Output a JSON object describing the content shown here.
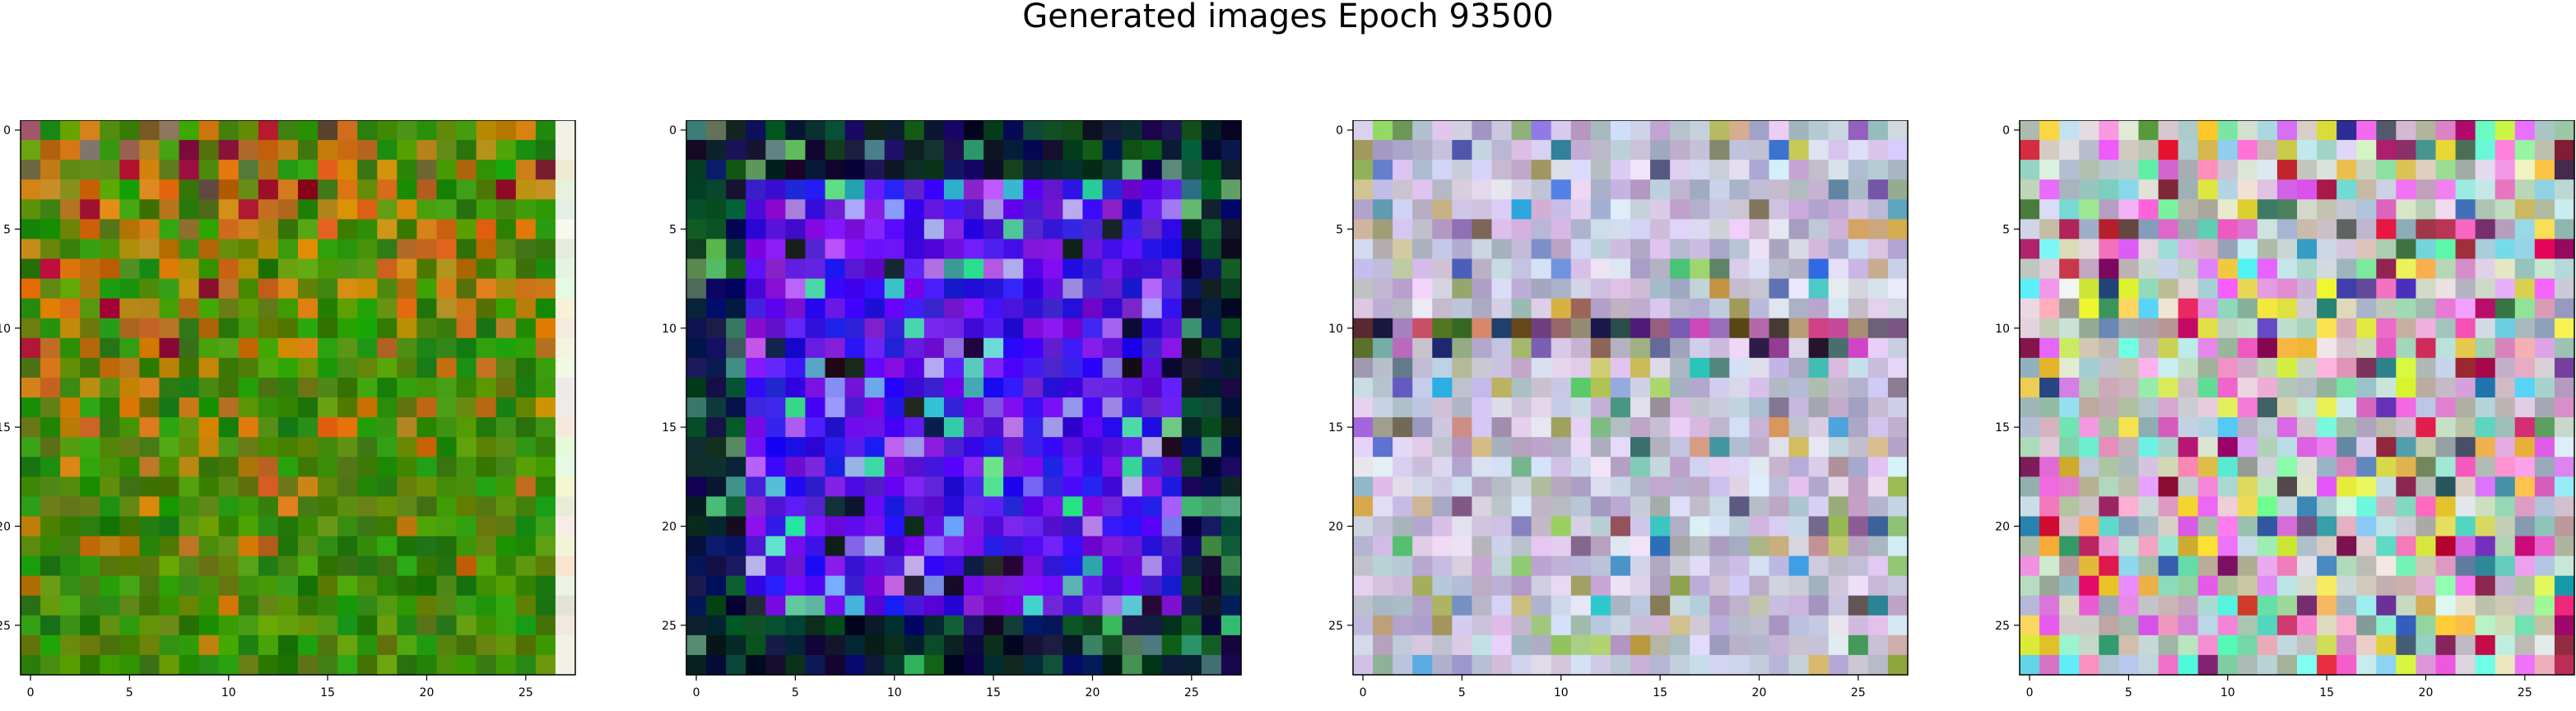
{
  "figure": {
    "title": "Generated images Epoch 93500"
  },
  "chart_data": [
    {
      "type": "heatmap",
      "description_kind": "rgb-image",
      "grid_size": [
        28,
        28
      ],
      "palette": "warm-green",
      "x_ticks": [
        "0",
        "5",
        "10",
        "15",
        "20",
        "25"
      ],
      "y_ticks": [
        "0",
        "5",
        "10",
        "15",
        "20",
        "25"
      ],
      "xlim": [
        -0.5,
        27.5
      ],
      "ylim": [
        27.5,
        -0.5
      ],
      "grid": false
    },
    {
      "type": "heatmap",
      "description_kind": "rgb-image",
      "grid_size": [
        28,
        28
      ],
      "palette": "blue-purple",
      "x_ticks": [
        "0",
        "5",
        "10",
        "15",
        "20",
        "25"
      ],
      "y_ticks": [
        "0",
        "5",
        "10",
        "15",
        "20",
        "25"
      ],
      "xlim": [
        -0.5,
        27.5
      ],
      "ylim": [
        27.5,
        -0.5
      ],
      "grid": false
    },
    {
      "type": "heatmap",
      "description_kind": "rgb-image",
      "grid_size": [
        28,
        28
      ],
      "palette": "pale-pastel",
      "x_ticks": [
        "0",
        "5",
        "10",
        "15",
        "20",
        "25"
      ],
      "y_ticks": [
        "0",
        "5",
        "10",
        "15",
        "20",
        "25"
      ],
      "xlim": [
        -0.5,
        27.5
      ],
      "ylim": [
        27.5,
        -0.5
      ],
      "grid": false
    },
    {
      "type": "heatmap",
      "description_kind": "rgb-image",
      "grid_size": [
        28,
        28
      ],
      "palette": "vivid-pastel",
      "x_ticks": [
        "0",
        "5",
        "10",
        "15",
        "20",
        "25"
      ],
      "y_ticks": [
        "0",
        "5",
        "10",
        "15",
        "20",
        "25"
      ],
      "xlim": [
        -0.5,
        27.5
      ],
      "ylim": [
        27.5,
        -0.5
      ],
      "grid": false
    }
  ]
}
